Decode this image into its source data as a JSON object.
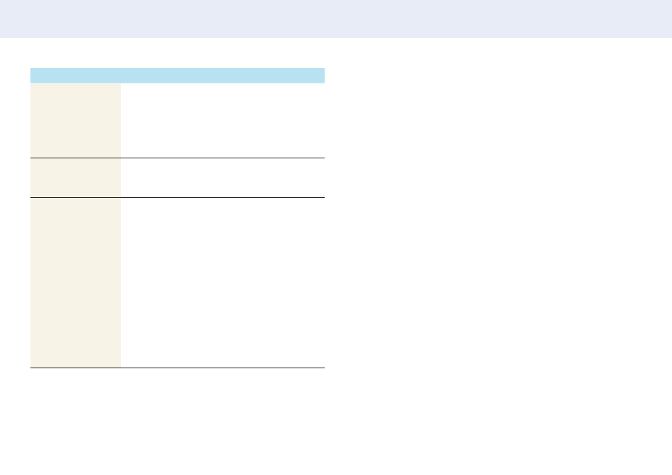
{
  "colors": {
    "top_band": "#e8ecf7",
    "table_header": "#b8e1f1",
    "first_column": "#f7f4e7",
    "row_divider": "#231f20"
  },
  "table": {
    "header": "",
    "rows": [
      {
        "label": "",
        "content": ""
      },
      {
        "label": "",
        "content": ""
      },
      {
        "label": "",
        "content": ""
      }
    ]
  }
}
